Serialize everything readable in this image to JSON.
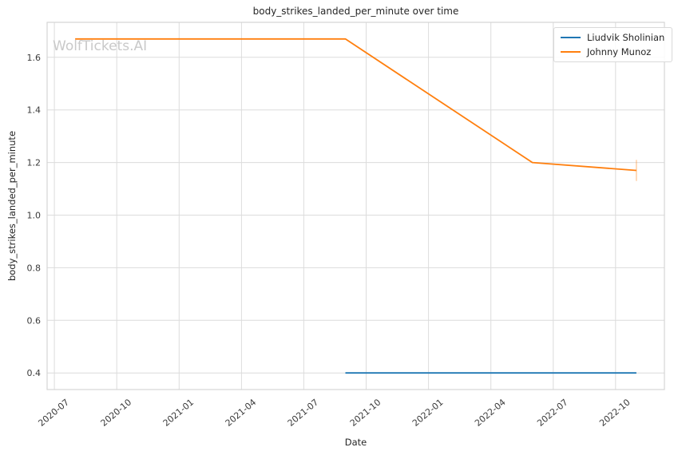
{
  "watermark": {
    "text": "WolfTickets.AI"
  },
  "chart_data": {
    "type": "line",
    "title": "body_strikes_landed_per_minute over time",
    "xlabel": "Date",
    "ylabel": "body_strikes_landed_per_minute",
    "grid": true,
    "legend_position": "upper right",
    "x_ticks": [
      "2020-07",
      "2020-10",
      "2021-01",
      "2021-04",
      "2021-07",
      "2021-10",
      "2022-01",
      "2022-04",
      "2022-07",
      "2022-10"
    ],
    "y_ticks": [
      0.4,
      0.6,
      0.8,
      1.0,
      1.2,
      1.4,
      1.6
    ],
    "xlim_months": [
      5.65,
      35.35
    ],
    "ylim": [
      0.337,
      1.733
    ],
    "colors": {
      "grid": "#dcdcdc",
      "frame": "#d4d4d4",
      "tick_text": "#3a3a3a"
    },
    "series": [
      {
        "name": "Liudvik Sholinian",
        "color": "#1f77b4",
        "points": [
          {
            "date": "2021-09",
            "value": 0.4
          },
          {
            "date": "2022-11",
            "value": 0.4
          }
        ]
      },
      {
        "name": "Johnny Munoz",
        "color": "#ff7f0e",
        "points": [
          {
            "date": "2020-08",
            "value": 1.67
          },
          {
            "date": "2021-09",
            "value": 1.67
          },
          {
            "date": "2022-06",
            "value": 1.2
          },
          {
            "date": "2022-11",
            "value": 1.17,
            "yerr": 0.04
          }
        ]
      }
    ]
  }
}
